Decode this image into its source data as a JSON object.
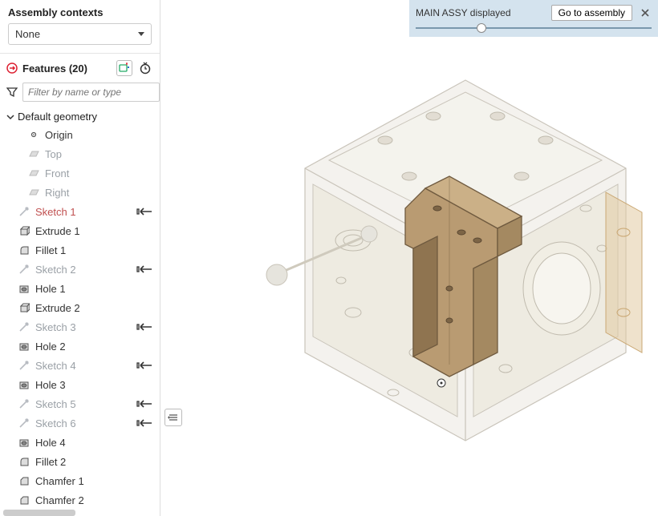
{
  "assembly": {
    "label": "Assembly contexts",
    "selected": "None"
  },
  "features": {
    "title_prefix": "Features",
    "count": 20,
    "filter_placeholder": "Filter by name or type"
  },
  "default_geometry": {
    "label": "Default geometry",
    "origin": "Origin",
    "planes": [
      "Top",
      "Front",
      "Right"
    ]
  },
  "feature_list": [
    {
      "name": "Sketch 1",
      "type": "sketch",
      "ghost": true,
      "warn": true,
      "arrow": true
    },
    {
      "name": "Extrude 1",
      "type": "extrude",
      "ghost": false,
      "arrow": false
    },
    {
      "name": "Fillet 1",
      "type": "fillet",
      "ghost": false,
      "arrow": false
    },
    {
      "name": "Sketch 2",
      "type": "sketch",
      "ghost": true,
      "arrow": true
    },
    {
      "name": "Hole 1",
      "type": "hole",
      "ghost": false,
      "arrow": false
    },
    {
      "name": "Extrude 2",
      "type": "extrude",
      "ghost": false,
      "arrow": false
    },
    {
      "name": "Sketch 3",
      "type": "sketch",
      "ghost": true,
      "arrow": true
    },
    {
      "name": "Hole 2",
      "type": "hole",
      "ghost": false,
      "arrow": false
    },
    {
      "name": "Sketch 4",
      "type": "sketch",
      "ghost": true,
      "arrow": true
    },
    {
      "name": "Hole 3",
      "type": "hole",
      "ghost": false,
      "arrow": false
    },
    {
      "name": "Sketch 5",
      "type": "sketch",
      "ghost": true,
      "arrow": true
    },
    {
      "name": "Sketch 6",
      "type": "sketch",
      "ghost": true,
      "arrow": true
    },
    {
      "name": "Hole 4",
      "type": "hole",
      "ghost": false,
      "arrow": false
    },
    {
      "name": "Fillet 2",
      "type": "fillet",
      "ghost": false,
      "arrow": false
    },
    {
      "name": "Chamfer 1",
      "type": "chamfer",
      "ghost": false,
      "arrow": false
    },
    {
      "name": "Chamfer 2",
      "type": "chamfer",
      "ghost": false,
      "arrow": false
    }
  ],
  "topbar": {
    "label": "MAIN ASSY displayed",
    "button": "Go to assembly",
    "slider_pct": 28
  },
  "colors": {
    "accent_bar": "#d4e3ee",
    "part_highlight": "#b99b72",
    "part_highlight_dark": "#8f7450",
    "ghost_model": "#e8e5df",
    "ghost_model_edge": "#c9c4ba",
    "ghost_circle": "#ded9cf",
    "ball": "#d6d6d6",
    "overlay_tan": "#e2cba2"
  },
  "icons": {
    "sketch": "sketch-icon",
    "extrude": "extrude-icon",
    "fillet": "fillet-icon",
    "hole": "hole-icon",
    "chamfer": "chamfer-icon",
    "plane": "plane-icon",
    "origin": "origin-icon"
  }
}
